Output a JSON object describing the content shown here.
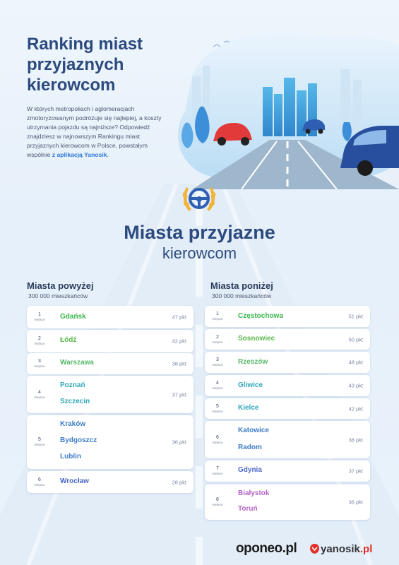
{
  "header": {
    "title_lines": [
      "Ranking miast",
      "przyjaznych",
      "kierowcom"
    ],
    "intro": "W których metropoliach i aglomeracjach zmotoryzowanym podróżuje się najlepiej, a koszty utrzymania pojazdu są najniższe? Odpowiedź znajdziesz w najnowszym Rankingu miast przyjaznych kierowcom w Polsce, powstałym wspólnie",
    "intro_link": "z aplikacją Yanosik",
    "intro_end": "."
  },
  "section": {
    "title_bold": "Miasta przyjazne",
    "title_regular": "kierowcom"
  },
  "icons": {
    "badge": "steering-wheel-laurel-icon",
    "yanosik": "yanosik-logo-icon"
  },
  "colors": {
    "gdansk": "#39b54a",
    "lodz": "#5ab84a",
    "warszawa": "#58b86a",
    "teal": "#2fa8b8",
    "blue": "#3d7ec6",
    "indigo": "#4a66c4",
    "purple": "#b565c8",
    "primary": "#2c4a7e"
  },
  "left": {
    "heading": "Miasta powyżej",
    "subheading": "300 000 mieszkańców",
    "rows": [
      {
        "rank": "1",
        "label": "miejsce",
        "cities": [
          "Gdańsk"
        ],
        "points": "47 pkt"
      },
      {
        "rank": "2",
        "label": "miejsce",
        "cities": [
          "Łódź"
        ],
        "points": "42 pkt"
      },
      {
        "rank": "3",
        "label": "miejsce",
        "cities": [
          "Warszawa"
        ],
        "points": "38 pkt"
      },
      {
        "rank": "4",
        "label": "miejsce",
        "cities": [
          "Poznań",
          "Szczecin"
        ],
        "points": "37 pkt"
      },
      {
        "rank": "5",
        "label": "miejsce",
        "cities": [
          "Kraków",
          "Bydgoszcz",
          "Lublin"
        ],
        "points": "36 pkt"
      },
      {
        "rank": "6",
        "label": "miejsce",
        "cities": [
          "Wrocław"
        ],
        "points": "28 pkt"
      }
    ]
  },
  "right": {
    "heading": "Miasta poniżej",
    "subheading": "300 000 mieszkańców",
    "rows": [
      {
        "rank": "1",
        "label": "miejsce",
        "cities": [
          "Częstochowa"
        ],
        "points": "51 pkt"
      },
      {
        "rank": "2",
        "label": "miejsce",
        "cities": [
          "Sosnowiec"
        ],
        "points": "50 pkt"
      },
      {
        "rank": "3",
        "label": "miejsce",
        "cities": [
          "Rzeszów"
        ],
        "points": "48 pkt"
      },
      {
        "rank": "4",
        "label": "miejsce",
        "cities": [
          "Gliwice"
        ],
        "points": "43 pkt"
      },
      {
        "rank": "5",
        "label": "miejsce",
        "cities": [
          "Kielce"
        ],
        "points": "42 pkt"
      },
      {
        "rank": "6",
        "label": "miejsce",
        "cities": [
          "Katowice",
          "Radom"
        ],
        "points": "38 pkt"
      },
      {
        "rank": "7",
        "label": "miejsce",
        "cities": [
          "Gdynia"
        ],
        "points": "37 pkt"
      },
      {
        "rank": "8",
        "label": "miejsce",
        "cities": [
          "Białystok",
          "Toruń"
        ],
        "points": "36 pkt"
      }
    ]
  },
  "footer": {
    "oponeo": "oponeo.pl",
    "yanosik": "yanosik",
    "yanosik_tld": ".pl"
  }
}
